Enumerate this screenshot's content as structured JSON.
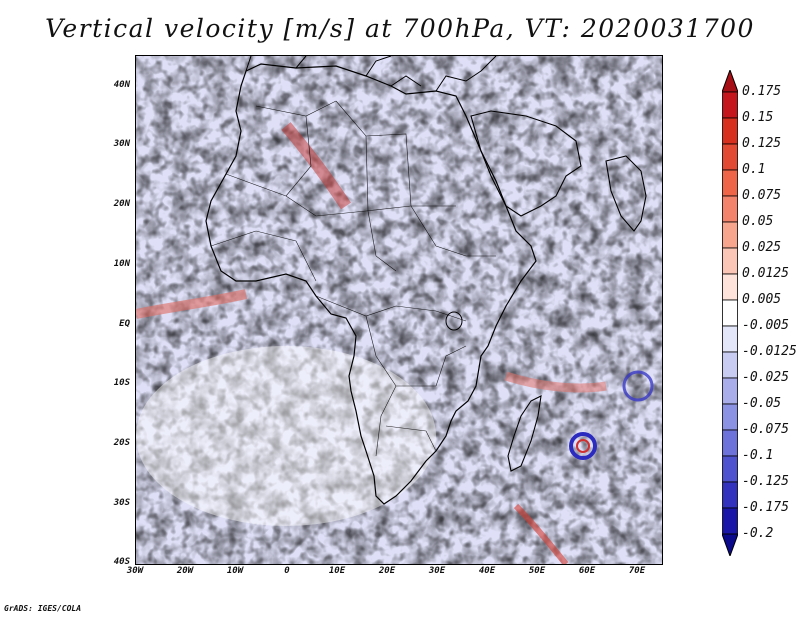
{
  "title": "Vertical velocity [m/s] at 700hPa, VT: 2020031700",
  "lat_ticks": [
    "40N",
    "30N",
    "20N",
    "10N",
    "EQ",
    "10S",
    "20S",
    "30S",
    "40S"
  ],
  "lon_ticks": [
    "30W",
    "20W",
    "10W",
    "0",
    "10E",
    "20E",
    "30E",
    "40E",
    "50E",
    "60E",
    "70E"
  ],
  "colorbar": {
    "labels": [
      "0.175",
      "0.15",
      "0.125",
      "0.1",
      "0.075",
      "0.05",
      "0.025",
      "0.0125",
      "0.005",
      "-0.005",
      "-0.0125",
      "-0.025",
      "-0.05",
      "-0.075",
      "-0.1",
      "-0.125",
      "-0.175",
      "-0.2"
    ],
    "colors": [
      "#a50f15",
      "#c4161c",
      "#d7301f",
      "#e34a33",
      "#ef6548",
      "#f4836b",
      "#f8a58e",
      "#fbc6b5",
      "#fde3da",
      "#ffffff",
      "#e3e5f8",
      "#c8ccf2",
      "#a9aeeb",
      "#8b91e3",
      "#6d72da",
      "#4f52cf",
      "#3232bf",
      "#1a17a8",
      "#0c0a8c"
    ]
  },
  "footer": "GrADS: IGES/COLA",
  "colors": {
    "up": "#d03030",
    "down": "#3a3ad0",
    "neutral": "#ffffff"
  }
}
